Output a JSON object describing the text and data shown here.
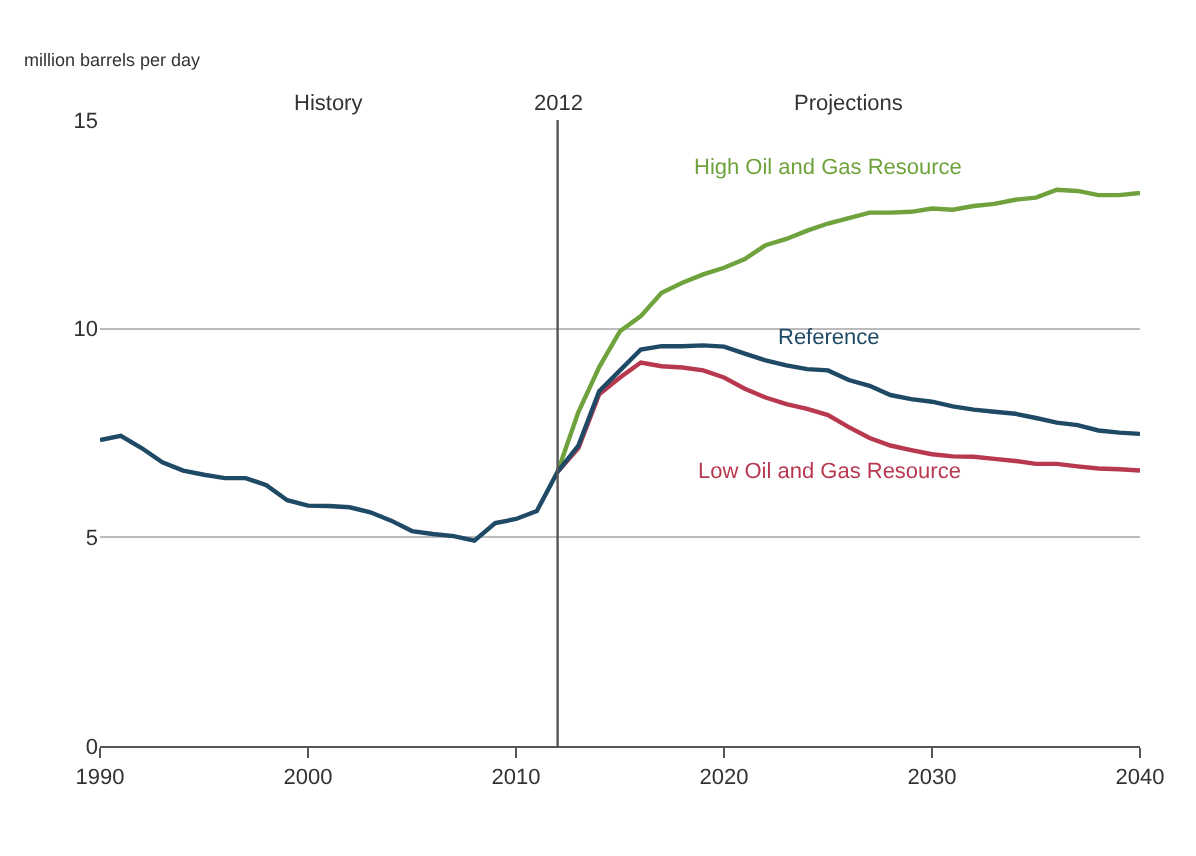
{
  "chart_data": {
    "type": "line",
    "ylabel": "million barrels per day",
    "xlim": [
      1990,
      2040
    ],
    "ylim": [
      0,
      15
    ],
    "xticks": [
      1990,
      2000,
      2010,
      2020,
      2030,
      2040
    ],
    "yticks": [
      0,
      5,
      10,
      15
    ],
    "grid": "y",
    "legend": false,
    "marker": "none",
    "line_style": "solid",
    "annotations": [
      "History",
      "Projections"
    ],
    "ref_lines": [
      {
        "axis": "x",
        "value": 2012,
        "label": "2012",
        "color": "#555555"
      }
    ],
    "series": [
      {
        "name": "High Oil and Gas Resource",
        "color": "#6fa23c",
        "x": [
          2012,
          2013,
          2014,
          2015,
          2016,
          2017,
          2018,
          2019,
          2020,
          2021,
          2022,
          2023,
          2024,
          2025,
          2026,
          2027,
          2028,
          2029,
          2030,
          2031,
          2032,
          2033,
          2034,
          2035,
          2036,
          2037,
          2038,
          2039,
          2040
        ],
        "values": [
          6.57,
          8.0,
          9.08,
          9.94,
          10.3,
          10.86,
          11.1,
          11.3,
          11.46,
          11.67,
          12.0,
          12.15,
          12.35,
          12.52,
          12.65,
          12.78,
          12.78,
          12.8,
          12.88,
          12.85,
          12.94,
          12.99,
          13.09,
          13.14,
          13.33,
          13.3,
          13.2,
          13.2,
          13.25
        ]
      },
      {
        "name": "Low Oil and Gas Resource",
        "color": "#b8394f",
        "x": [
          2012,
          2013,
          2014,
          2015,
          2016,
          2017,
          2018,
          2019,
          2020,
          2021,
          2022,
          2023,
          2024,
          2025,
          2026,
          2027,
          2028,
          2029,
          2030,
          2031,
          2032,
          2033,
          2034,
          2035,
          2036,
          2037,
          2038,
          2039,
          2040
        ],
        "values": [
          6.57,
          7.14,
          8.43,
          8.83,
          9.19,
          9.1,
          9.07,
          9.0,
          8.83,
          8.56,
          8.35,
          8.19,
          8.08,
          7.93,
          7.64,
          7.38,
          7.2,
          7.09,
          6.99,
          6.94,
          6.93,
          6.88,
          6.83,
          6.76,
          6.76,
          6.7,
          6.65,
          6.63,
          6.6
        ]
      },
      {
        "name": "Reference",
        "color": "#1f4a66",
        "x": [
          1990,
          1991,
          1992,
          1993,
          1994,
          1995,
          1996,
          1997,
          1998,
          1999,
          2000,
          2001,
          2002,
          2003,
          2004,
          2005,
          2006,
          2007,
          2008,
          2009,
          2010,
          2011,
          2012,
          2013,
          2014,
          2015,
          2016,
          2017,
          2018,
          2019,
          2020,
          2021,
          2022,
          2023,
          2024,
          2025,
          2026,
          2027,
          2028,
          2029,
          2030,
          2031,
          2032,
          2033,
          2034,
          2035,
          2036,
          2037,
          2038,
          2039,
          2040
        ],
        "values": [
          7.33,
          7.43,
          7.14,
          6.8,
          6.6,
          6.5,
          6.42,
          6.42,
          6.25,
          5.89,
          5.76,
          5.75,
          5.72,
          5.6,
          5.4,
          5.15,
          5.08,
          5.03,
          4.92,
          5.34,
          5.44,
          5.63,
          6.57,
          7.2,
          8.5,
          9.0,
          9.5,
          9.58,
          9.58,
          9.6,
          9.57,
          9.4,
          9.24,
          9.12,
          9.03,
          9.0,
          8.77,
          8.63,
          8.41,
          8.31,
          8.25,
          8.14,
          8.06,
          8.01,
          7.96,
          7.86,
          7.75,
          7.69,
          7.56,
          7.51,
          7.48
        ]
      }
    ]
  }
}
